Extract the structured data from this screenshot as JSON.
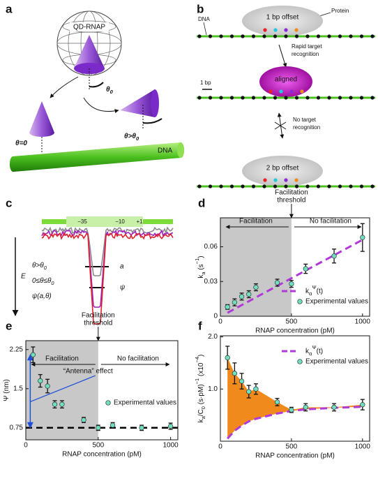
{
  "panel_a": {
    "label": "a",
    "globe": "QD-RNAP",
    "theta0": [
      {
        "text": "θ"
      },
      {
        "text": "0",
        "shift": "sub"
      }
    ],
    "theta_zero": [
      {
        "text": "θ=0"
      }
    ],
    "theta_gt": [
      {
        "text": "θ>θ"
      },
      {
        "text": "0",
        "shift": "sub"
      }
    ],
    "dna": "DNA"
  },
  "panel_b": {
    "label": "b",
    "dna": "DNA",
    "protein": "Protein",
    "offset1": "1 bp offset",
    "rapid": [
      "Rapid target",
      "recognition"
    ],
    "scale": "1 bp",
    "aligned": "aligned",
    "no_target": [
      "No target",
      "recognition"
    ],
    "offset2": "2 bp offset"
  },
  "panel_c": {
    "label": "c",
    "promoter": [
      "−35",
      "−10",
      "+1"
    ],
    "field": "E",
    "legend": [
      [
        {
          "text": "θ>θ"
        },
        {
          "text": "0",
          "shift": "sub"
        }
      ],
      [
        {
          "text": "0≤θ≤θ"
        },
        {
          "text": "0",
          "shift": "sub"
        }
      ],
      [
        {
          "text": "ψ(a,θ)"
        }
      ]
    ],
    "legend_colors": [
      "#8a8a8a",
      "#e0207a",
      "#a020c0"
    ],
    "width_a": "a",
    "width_psi": "ψ"
  },
  "chart_data": [
    {
      "panel": "d",
      "type": "scatter",
      "xlim": [
        0,
        1050
      ],
      "xticks": [
        0,
        500,
        1000
      ],
      "ylim": [
        0,
        0.085
      ],
      "yticks": [
        0,
        0.03,
        0.06
      ],
      "x_label": "RNAP concentration (pM)",
      "y_label": [
        {
          "text": "k"
        },
        {
          "text": "a",
          "shift": "sub"
        },
        {
          "text": " (s"
        },
        {
          "text": "−1",
          "shift": "super"
        },
        {
          "text": ")"
        }
      ],
      "shaded_region": [
        0,
        500
      ],
      "shade_color": "#c8c8c8",
      "threshold_label": [
        "Facilitation",
        "threshold"
      ],
      "left_label": "Facilitation",
      "right_label": "No facilitation",
      "legend": "lower right",
      "series": [
        {
          "name": [
            {
              "text": "k"
            },
            {
              "text": "α",
              "shift": "sub"
            },
            {
              "text": "Ψ",
              "shift": "super"
            },
            {
              "text": "(t)"
            }
          ],
          "color": "#b03ad8",
          "style": "dashed",
          "x": [
            50,
            1000
          ],
          "values": [
            0.003,
            0.066
          ]
        },
        {
          "name": "Experimental values",
          "color": "#6fe0bf",
          "marker": "circle",
          "x": [
            50,
            100,
            150,
            200,
            250,
            400,
            500,
            600,
            800,
            1000
          ],
          "values": [
            0.008,
            0.012,
            0.017,
            0.019,
            0.025,
            0.029,
            0.028,
            0.041,
            0.052,
            0.068
          ],
          "errors": [
            0.002,
            0.003,
            0.003,
            0.003,
            0.003,
            0.003,
            0.003,
            0.004,
            0.006,
            0.012
          ]
        }
      ]
    },
    {
      "panel": "e",
      "type": "scatter",
      "xlim": [
        0,
        1050
      ],
      "xticks": [
        0,
        500,
        1000
      ],
      "ylim": [
        0.52,
        2.42
      ],
      "yticks": [
        0.75,
        1.5,
        2.25
      ],
      "x_label": "RNAP concentration (pM)",
      "y_label": [
        {
          "text": "Ψ (nm)"
        }
      ],
      "shaded_region": [
        0,
        500
      ],
      "shade_color": "#c8c8c8",
      "threshold_label": [
        "Facilitation",
        "threshold"
      ],
      "left_label": "Facilitation",
      "right_label": "No facilitation",
      "legend": "center right",
      "reference_line": 0.75,
      "antenna": {
        "label": "“Antenna” effect",
        "color": "#1f4fd8"
      },
      "series": [
        {
          "name": "Experimental values",
          "color": "#6fe0bf",
          "marker": "circle",
          "x": [
            50,
            100,
            150,
            200,
            250,
            400,
            500,
            600,
            800,
            1000
          ],
          "values": [
            2.15,
            1.65,
            1.55,
            1.2,
            1.2,
            0.9,
            0.75,
            0.8,
            0.75,
            0.78
          ],
          "errors": [
            0.15,
            0.12,
            0.13,
            0.07,
            0.07,
            0.05,
            0.05,
            0.05,
            0.05,
            0.06
          ]
        }
      ]
    },
    {
      "panel": "f",
      "type": "scatter",
      "xlim": [
        0,
        1050
      ],
      "xticks": [
        0,
        500,
        1000
      ],
      "ylim": [
        0,
        2.02
      ],
      "yticks": [
        {
          "value": 1,
          "label": "1.0"
        },
        {
          "value": 2,
          "label": "2.0"
        }
      ],
      "x_label": "RNAP concentration (pM)",
      "y_label": [
        {
          "text": "k"
        },
        {
          "text": "a",
          "shift": "sub"
        },
        {
          "text": "/C"
        },
        {
          "text": "0",
          "shift": "sub"
        },
        {
          "text": " (s·pM)"
        },
        {
          "text": "−1",
          "shift": "super"
        },
        {
          "text": " (x10"
        },
        {
          "text": "−4",
          "shift": "super"
        },
        {
          "text": ")"
        }
      ],
      "legend": "upper right",
      "fill_color": "#f08a1c",
      "series": [
        {
          "name": [
            {
              "text": "k"
            },
            {
              "text": "α",
              "shift": "sub"
            },
            {
              "text": "Ψ",
              "shift": "super"
            },
            {
              "text": "(t)"
            }
          ],
          "color": "#b03ad8",
          "style": "dashed",
          "x": [
            50,
            100,
            150,
            200,
            250,
            400,
            500,
            600,
            800,
            1000
          ],
          "values": [
            0.05,
            0.2,
            0.3,
            0.38,
            0.43,
            0.53,
            0.58,
            0.61,
            0.64,
            0.66
          ]
        },
        {
          "name": "Experimental values",
          "color": "#6fe0bf",
          "marker": "circle",
          "x": [
            50,
            100,
            150,
            200,
            250,
            400,
            500,
            600,
            800,
            1000
          ],
          "values": [
            1.6,
            1.3,
            1.15,
            0.95,
            1.0,
            0.75,
            0.6,
            0.65,
            0.65,
            0.7
          ],
          "errors": [
            0.22,
            0.2,
            0.15,
            0.12,
            0.1,
            0.07,
            0.05,
            0.07,
            0.07,
            0.1
          ]
        }
      ]
    }
  ]
}
